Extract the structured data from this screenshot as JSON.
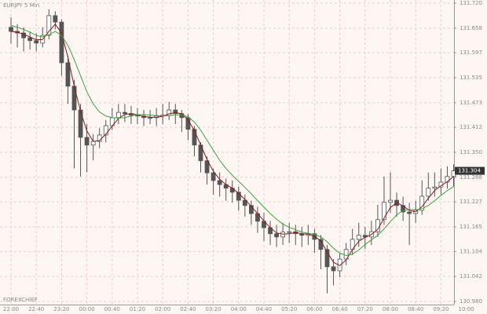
{
  "chart_data": {
    "type": "candlestick",
    "title": "EURJPY 5 Min",
    "watermark": "FOREXCHIEF",
    "categories": [
      "22:00",
      null,
      null,
      null,
      "22:40",
      null,
      null,
      null,
      "23:20",
      null,
      null,
      null,
      "00:00",
      null,
      null,
      null,
      "00:40",
      null,
      null,
      null,
      "01:20",
      null,
      null,
      null,
      "02:00",
      null,
      null,
      null,
      "02:40",
      null,
      null,
      null,
      "03:20",
      null,
      null,
      null,
      "04:00",
      null,
      null,
      null,
      "04:40",
      null,
      null,
      null,
      "05:20",
      null,
      null,
      null,
      "06:00",
      null,
      null,
      null,
      "06:40",
      null,
      null,
      null,
      "07:20",
      null,
      null,
      null,
      "08:00",
      null,
      null,
      null,
      "08:40",
      null,
      null,
      null,
      "09:20",
      null,
      null,
      null,
      "10:00"
    ],
    "ohlc": {
      "open": [
        131.66,
        131.65,
        131.646,
        131.634,
        131.627,
        131.621,
        131.64,
        131.689,
        131.673,
        131.572,
        131.514,
        131.455,
        131.387,
        131.368,
        131.377,
        131.393,
        131.416,
        131.436,
        131.449,
        131.446,
        131.442,
        131.44,
        131.436,
        131.436,
        131.44,
        131.442,
        131.455,
        131.446,
        131.436,
        131.407,
        131.368,
        131.329,
        131.299,
        131.28,
        131.27,
        131.261,
        131.251,
        131.231,
        131.218,
        131.198,
        131.179,
        131.163,
        131.148,
        131.14,
        131.152,
        131.153,
        131.148,
        131.144,
        131.148,
        131.134,
        131.109,
        131.066,
        131.056,
        131.085,
        131.109,
        131.134,
        131.144,
        131.14,
        131.153,
        131.183,
        131.226,
        131.231,
        131.218,
        131.202,
        131.198,
        131.206,
        131.241,
        131.261,
        131.264,
        131.276,
        131.29,
        null,
        null
      ],
      "high": [
        131.685,
        131.668,
        131.66,
        131.65,
        131.645,
        131.66,
        131.705,
        131.7,
        131.68,
        131.59,
        131.53,
        131.47,
        131.42,
        131.395,
        131.41,
        131.43,
        131.46,
        131.47,
        131.47,
        131.465,
        131.46,
        131.455,
        131.455,
        131.46,
        131.47,
        131.475,
        131.47,
        131.455,
        131.445,
        131.415,
        131.375,
        131.34,
        131.31,
        131.3,
        131.285,
        131.28,
        131.265,
        131.245,
        131.23,
        131.215,
        131.2,
        131.18,
        131.17,
        131.175,
        131.175,
        131.17,
        131.165,
        131.17,
        131.16,
        131.145,
        131.12,
        131.085,
        131.1,
        131.125,
        131.16,
        131.175,
        131.165,
        131.18,
        131.22,
        131.29,
        131.3,
        131.25,
        131.24,
        131.225,
        131.23,
        131.28,
        131.3,
        131.3,
        131.31,
        131.315,
        131.32,
        null,
        null
      ],
      "low": [
        131.62,
        131.61,
        131.6,
        131.605,
        131.6,
        131.61,
        131.63,
        131.655,
        131.54,
        131.47,
        131.31,
        131.29,
        131.3,
        131.33,
        131.36,
        131.375,
        131.405,
        131.42,
        131.425,
        131.42,
        131.42,
        131.415,
        131.42,
        131.415,
        131.42,
        131.43,
        131.42,
        131.4,
        131.38,
        131.34,
        131.3,
        131.27,
        131.245,
        131.24,
        131.23,
        131.225,
        131.205,
        131.19,
        131.17,
        131.15,
        131.13,
        131.12,
        131.115,
        131.12,
        131.125,
        131.12,
        131.115,
        131.12,
        131.1,
        131.06,
        131.0,
        131.02,
        131.04,
        131.07,
        131.095,
        131.115,
        131.11,
        131.12,
        131.14,
        131.17,
        131.2,
        131.19,
        131.18,
        131.12,
        131.175,
        131.195,
        131.23,
        131.24,
        131.245,
        131.26,
        131.265,
        null,
        null
      ],
      "close": [
        131.65,
        131.646,
        131.634,
        131.627,
        131.621,
        131.64,
        131.689,
        131.673,
        131.572,
        131.514,
        131.455,
        131.387,
        131.368,
        131.377,
        131.393,
        131.416,
        131.436,
        131.449,
        131.446,
        131.442,
        131.44,
        131.436,
        131.436,
        131.44,
        131.442,
        131.455,
        131.446,
        131.436,
        131.407,
        131.368,
        131.329,
        131.299,
        131.28,
        131.27,
        131.261,
        131.251,
        131.231,
        131.218,
        131.198,
        131.179,
        131.163,
        131.148,
        131.14,
        131.152,
        131.153,
        131.148,
        131.144,
        131.148,
        131.134,
        131.109,
        131.066,
        131.056,
        131.085,
        131.109,
        131.134,
        131.144,
        131.14,
        131.153,
        131.183,
        131.226,
        131.231,
        131.218,
        131.202,
        131.198,
        131.206,
        131.241,
        131.261,
        131.264,
        131.276,
        131.29,
        131.304,
        null,
        null
      ]
    },
    "moving_averages": [
      {
        "color": "#8b1a1a",
        "values": [
          131.65,
          131.648,
          131.643,
          131.636,
          131.629,
          131.63,
          131.65,
          131.668,
          131.645,
          131.586,
          131.514,
          131.452,
          131.403,
          131.377,
          131.379,
          131.395,
          131.415,
          131.434,
          131.444,
          131.446,
          131.443,
          131.439,
          131.437,
          131.437,
          131.439,
          131.446,
          131.448,
          131.446,
          131.43,
          131.404,
          131.368,
          131.332,
          131.303,
          131.283,
          131.27,
          131.261,
          131.248,
          131.233,
          131.216,
          131.198,
          131.18,
          131.163,
          131.15,
          131.147,
          131.148,
          131.151,
          131.148,
          131.147,
          131.142,
          131.13,
          131.103,
          131.077,
          131.069,
          131.083,
          131.109,
          131.129,
          131.139,
          131.146,
          131.159,
          131.187,
          131.213,
          131.225,
          131.217,
          131.206,
          131.202,
          131.215,
          131.236,
          131.255,
          131.267,
          131.277,
          131.29,
          null,
          null
        ]
      },
      {
        "color": "#3aa53a",
        "values": [
          131.665,
          131.66,
          131.655,
          131.648,
          131.64,
          131.636,
          131.642,
          131.65,
          131.64,
          131.615,
          131.58,
          131.54,
          131.5,
          131.47,
          131.45,
          131.44,
          131.436,
          131.435,
          131.436,
          131.44,
          131.443,
          131.444,
          131.442,
          131.441,
          131.44,
          131.441,
          131.443,
          131.443,
          131.438,
          131.425,
          131.405,
          131.38,
          131.355,
          131.33,
          131.31,
          131.293,
          131.278,
          131.263,
          131.247,
          131.23,
          131.214,
          131.198,
          131.184,
          131.172,
          131.164,
          131.158,
          131.152,
          131.149,
          131.146,
          131.14,
          131.128,
          131.112,
          131.1,
          131.094,
          131.097,
          131.108,
          131.121,
          131.133,
          131.144,
          131.16,
          131.178,
          131.195,
          131.205,
          131.208,
          131.207,
          131.21,
          131.218,
          131.23,
          131.243,
          131.255,
          131.265,
          null,
          null
        ]
      }
    ],
    "last_price": 131.304,
    "ylim": [
      130.98,
      131.72
    ],
    "yticks": [
      {
        "value": 130.98,
        "label": "130.980"
      },
      {
        "value": 131.042,
        "label": "131.042"
      },
      {
        "value": 131.104,
        "label": "131.104"
      },
      {
        "value": 131.165,
        "label": "131.165"
      },
      {
        "value": 131.227,
        "label": "131.227"
      },
      {
        "value": 131.288,
        "label": "131.288"
      },
      {
        "value": 131.35,
        "label": "131.350"
      },
      {
        "value": 131.412,
        "label": "131.412"
      },
      {
        "value": 131.473,
        "label": "131.473"
      },
      {
        "value": 131.535,
        "label": "131.535"
      },
      {
        "value": 131.597,
        "label": "131.597"
      },
      {
        "value": 131.658,
        "label": "131.658"
      },
      {
        "value": 131.72,
        "label": "131.720"
      }
    ],
    "grid": true,
    "up_color": "#ffffff",
    "down_color": "#555555",
    "wick_color": "#555555"
  }
}
